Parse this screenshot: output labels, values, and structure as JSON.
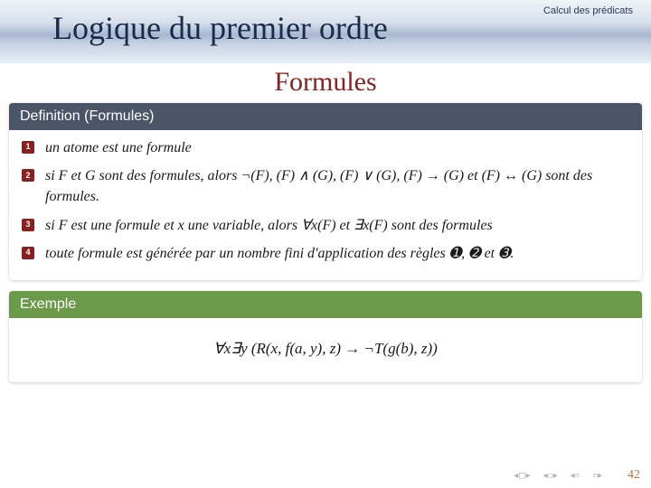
{
  "breadcrumb": "Calcul des prédicats",
  "title": "Logique du premier ordre",
  "subtitle": "Formules",
  "definition": {
    "header": "Definition (Formules)",
    "items": [
      "un atome est une formule",
      "si F et G sont des formules, alors ¬(F), (F) ∧ (G), (F) ∨ (G), (F) → (G) et (F) ↔ (G) sont des formules.",
      "si F est une formule et x une variable, alors ∀x(F) et ∃x(F) sont des formules",
      "toute formule est générée par un nombre fini d'application des règles ➊, ➋ et ➌."
    ]
  },
  "example": {
    "header": "Exemple",
    "formula": "∀x∃y (R(x, f(a, y), z) → ¬T(g(b), z))"
  },
  "page_number": "42",
  "colors": {
    "title_color": "#1a2a4a",
    "subtitle_color": "#8b2020",
    "def_header_bg": "#4a5568",
    "ex_header_bg": "#6a9a4a",
    "bullet_bg": "#8b2020",
    "page_num_color": "#c0704a"
  }
}
